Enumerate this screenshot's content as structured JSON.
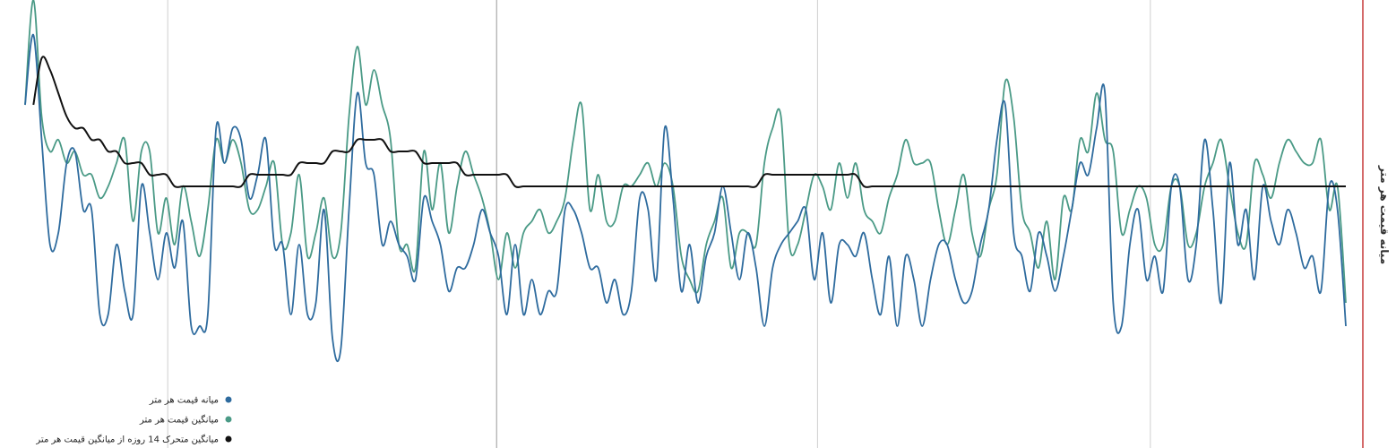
{
  "chart_data": {
    "type": "line",
    "y_axis_title": "میانه قیمت هر متر",
    "grid": "vertical-only",
    "legend_placement": "bottom-left",
    "x_count": 160,
    "ylim": [
      0,
      100
    ],
    "series": [
      {
        "name": "میانه قیمت هر متر",
        "color": "#2e6b9e",
        "values": [
          91,
          97,
          88,
          79,
          80,
          86,
          87,
          82,
          82,
          73,
          73,
          79,
          75,
          73,
          84,
          80,
          76,
          80,
          77,
          81,
          72,
          72,
          73,
          89,
          86,
          89,
          88,
          83,
          85,
          88,
          79,
          79,
          73,
          79,
          73,
          74,
          82,
          71,
          70,
          82,
          92,
          86,
          85,
          79,
          81,
          79,
          78,
          76,
          83,
          81,
          79,
          75,
          77,
          77,
          79,
          82,
          80,
          78,
          73,
          79,
          73,
          76,
          73,
          75,
          75,
          82,
          82,
          80,
          77,
          77,
          74,
          76,
          73,
          75,
          83,
          82,
          76,
          89,
          83,
          75,
          79,
          74,
          78,
          80,
          84,
          80,
          76,
          80,
          77,
          72,
          77,
          79,
          80,
          81,
          82,
          76,
          80,
          74,
          79,
          79,
          78,
          80,
          76,
          73,
          78,
          72,
          78,
          76,
          72,
          76,
          79,
          79,
          76,
          74,
          75,
          79,
          82,
          88,
          91,
          80,
          78,
          75,
          80,
          78,
          75,
          78,
          82,
          86,
          85,
          89,
          92,
          74,
          72,
          79,
          82,
          76,
          78,
          75,
          84,
          84,
          76,
          79,
          88,
          82,
          74,
          86,
          79,
          82,
          76,
          84,
          81,
          79,
          82,
          80,
          77,
          78,
          75,
          84,
          82,
          72
        ]
      },
      {
        "name": "میانگین قیمت هر متر",
        "color": "#4a9a86",
        "values": [
          91,
          100,
          90,
          87,
          88,
          86,
          87,
          85,
          85,
          83,
          84,
          86,
          88,
          81,
          87,
          87,
          80,
          83,
          79,
          84,
          81,
          78,
          82,
          88,
          86,
          88,
          86,
          82,
          82,
          84,
          86,
          79,
          80,
          85,
          78,
          80,
          83,
          78,
          80,
          90,
          96,
          91,
          94,
          91,
          88,
          79,
          79,
          77,
          87,
          82,
          86,
          80,
          84,
          87,
          85,
          83,
          80,
          76,
          80,
          77,
          80,
          81,
          82,
          80,
          81,
          83,
          88,
          91,
          82,
          85,
          81,
          81,
          84,
          84,
          85,
          86,
          84,
          86,
          84,
          78,
          76,
          75,
          79,
          81,
          83,
          77,
          80,
          80,
          79,
          86,
          89,
          90,
          79,
          79,
          82,
          85,
          84,
          82,
          86,
          83,
          86,
          82,
          81,
          80,
          83,
          85,
          88,
          86,
          86,
          86,
          82,
          79,
          82,
          85,
          80,
          78,
          82,
          85,
          93,
          90,
          82,
          80,
          77,
          81,
          76,
          83,
          82,
          88,
          87,
          92,
          88,
          87,
          80,
          82,
          84,
          83,
          79,
          79,
          84,
          84,
          79,
          80,
          84,
          86,
          88,
          84,
          80,
          79,
          86,
          85,
          83,
          86,
          88,
          87,
          86,
          86,
          88,
          82,
          84,
          74
        ]
      },
      {
        "name": "میانگین متحرک 14 روزه از میانگین قیمت هر متر",
        "color": "#111111",
        "values": [
          null,
          91,
          95,
          94,
          92,
          90,
          89,
          89,
          88,
          88,
          87,
          87,
          86,
          86,
          86,
          85,
          85,
          85,
          84,
          84,
          84,
          84,
          84,
          84,
          84,
          84,
          84,
          85,
          85,
          85,
          85,
          85,
          85,
          86,
          86,
          86,
          86,
          87,
          87,
          87,
          88,
          88,
          88,
          88,
          87,
          87,
          87,
          87,
          86,
          86,
          86,
          86,
          86,
          85,
          85,
          85,
          85,
          85,
          85,
          84,
          84,
          84,
          84,
          84,
          84,
          84,
          84,
          84,
          84,
          84,
          84,
          84,
          84,
          84,
          84,
          84,
          84,
          84,
          84,
          84,
          84,
          84,
          84,
          84,
          84,
          84,
          84,
          84,
          84,
          85,
          85,
          85,
          85,
          85,
          85,
          85,
          85,
          85,
          85,
          85,
          85,
          84,
          84,
          84,
          84,
          84,
          84,
          84,
          84,
          84,
          84,
          84,
          84,
          84,
          84,
          84,
          84,
          84,
          84,
          84,
          84,
          84,
          84,
          84,
          84,
          84,
          84,
          84,
          84,
          84,
          84,
          84,
          84,
          84,
          84,
          84,
          84,
          84,
          84,
          84,
          84,
          84,
          84,
          84,
          84,
          84,
          84,
          84,
          84,
          84,
          84,
          84,
          84,
          84,
          84,
          84,
          84,
          84,
          84,
          84
        ]
      }
    ],
    "gridline_positions": [
      0.108,
      0.357,
      0.6,
      0.852
    ]
  }
}
